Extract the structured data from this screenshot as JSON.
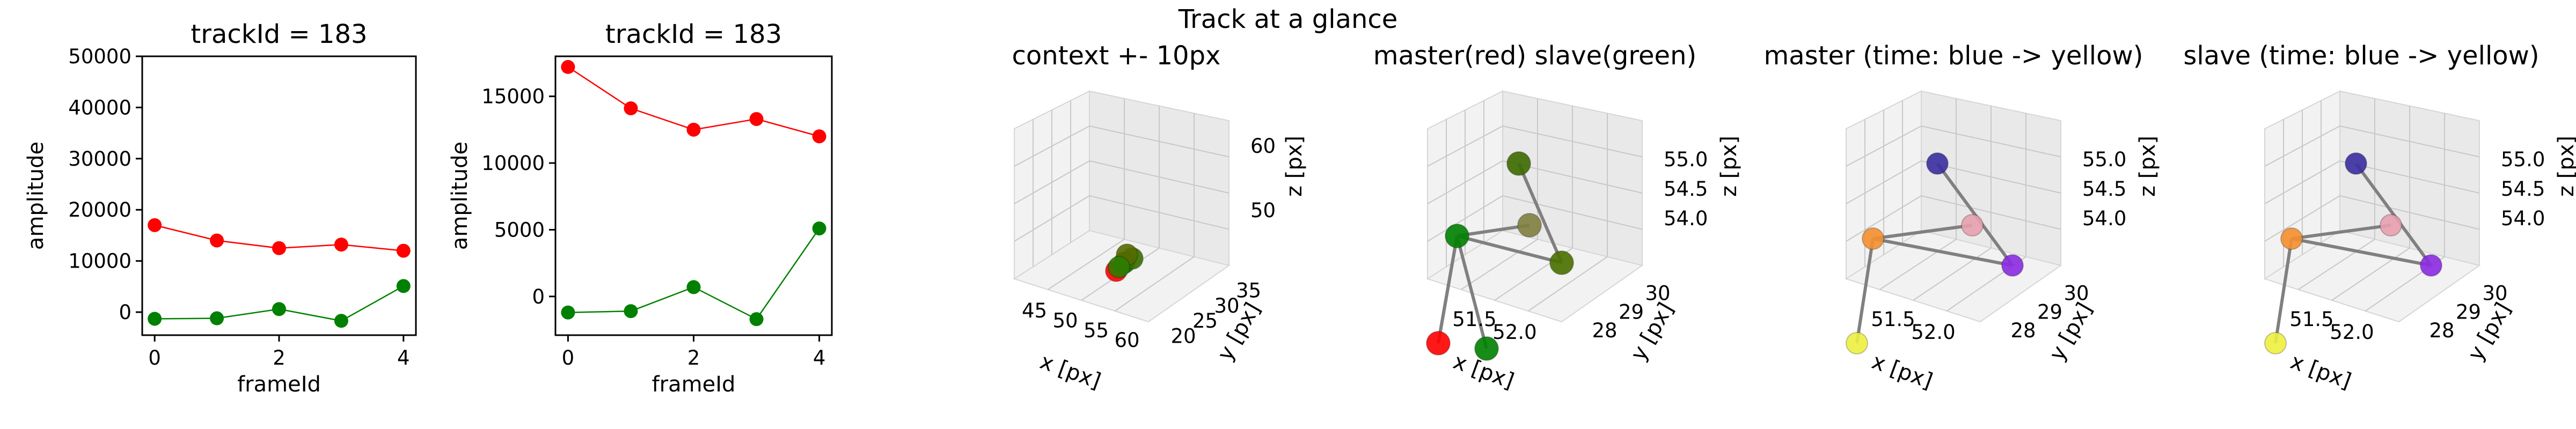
{
  "suptitle": "Track at a glance",
  "chart_data": [
    {
      "type": "line",
      "title": "trackId = 183",
      "xlabel": "frameId",
      "ylabel": "amplitude",
      "x": [
        0,
        1,
        2,
        3,
        4
      ],
      "xticks": [
        "0",
        "2",
        "4"
      ],
      "yticks": [
        "0",
        "10000",
        "20000",
        "30000",
        "40000",
        "50000"
      ],
      "ylim": [
        -4500,
        50000
      ],
      "xlim": [
        -0.2,
        4.2
      ],
      "series": [
        {
          "color": "#ff0000",
          "values": [
            17000,
            14000,
            12500,
            13200,
            12000
          ]
        },
        {
          "color": "#008000",
          "values": [
            -1300,
            -1200,
            600,
            -1700,
            5100
          ]
        }
      ]
    },
    {
      "type": "line",
      "title": "trackId = 183",
      "xlabel": "frameId",
      "ylabel": "amplitude",
      "x": [
        0,
        1,
        2,
        3,
        4
      ],
      "xticks": [
        "0",
        "2",
        "4"
      ],
      "yticks": [
        "0",
        "5000",
        "10000",
        "15000"
      ],
      "ylim": [
        -2900,
        18000
      ],
      "xlim": [
        -0.2,
        4.2
      ],
      "series": [
        {
          "color": "#ff0000",
          "values": [
            17200,
            14100,
            12500,
            13300,
            12000
          ]
        },
        {
          "color": "#008000",
          "values": [
            -1200,
            -1100,
            700,
            -1700,
            5100
          ]
        }
      ]
    },
    {
      "type": "scatter3d",
      "title": "context +- 10px",
      "xlabel": "x [px]",
      "ylabel": "y [px]",
      "zlabel": "z [px]",
      "xticks": [
        "45",
        "50",
        "55",
        "60"
      ],
      "yticks": [
        "20",
        "25",
        "30",
        "35"
      ],
      "zticks": [
        "50",
        "60"
      ],
      "points": [
        {
          "color": "#ff0000"
        },
        {
          "color": "#008000"
        },
        {
          "color": "#3a6f00"
        },
        {
          "color": "#556b00"
        },
        {
          "color": "#2e7d00"
        }
      ]
    },
    {
      "type": "scatter3d",
      "title": "master(red) slave(green)",
      "xlabel": "x [px]",
      "ylabel": "y [px]",
      "zlabel": "z [px]",
      "xticks": [
        "51.5",
        "52.0"
      ],
      "yticks": [
        "28",
        "29",
        "30"
      ],
      "zticks": [
        "54.0",
        "54.5",
        "55.0"
      ],
      "points": [
        {
          "color": "#ff0000"
        },
        {
          "color": "#008000"
        },
        {
          "color": "#008000"
        },
        {
          "color": "#808040"
        },
        {
          "color": "#4a7000"
        },
        {
          "color": "#3d6b00"
        }
      ]
    },
    {
      "type": "scatter3d",
      "title": "master (time: blue -> yellow)",
      "xlabel": "x [px]",
      "ylabel": "y [px]",
      "zlabel": "z [px]",
      "xticks": [
        "51.5",
        "52.0"
      ],
      "yticks": [
        "28",
        "29",
        "30"
      ],
      "zticks": [
        "54.0",
        "54.5",
        "55.0"
      ],
      "points": [
        {
          "color": "#eef040"
        },
        {
          "color": "#f59030"
        },
        {
          "color": "#e8a0b0"
        },
        {
          "color": "#8a2be2"
        },
        {
          "color": "#3a2ea0"
        }
      ]
    },
    {
      "type": "scatter3d",
      "title": "slave (time: blue -> yellow)",
      "xlabel": "x [px]",
      "ylabel": "y [px]",
      "zlabel": "z [px]",
      "xticks": [
        "51.5",
        "52.0"
      ],
      "yticks": [
        "28",
        "29",
        "30"
      ],
      "zticks": [
        "54.0",
        "54.5",
        "55.0"
      ],
      "points": [
        {
          "color": "#eef040"
        },
        {
          "color": "#f59030"
        },
        {
          "color": "#e8a0b0"
        },
        {
          "color": "#8a2be2"
        },
        {
          "color": "#3a2ea0"
        }
      ]
    }
  ]
}
